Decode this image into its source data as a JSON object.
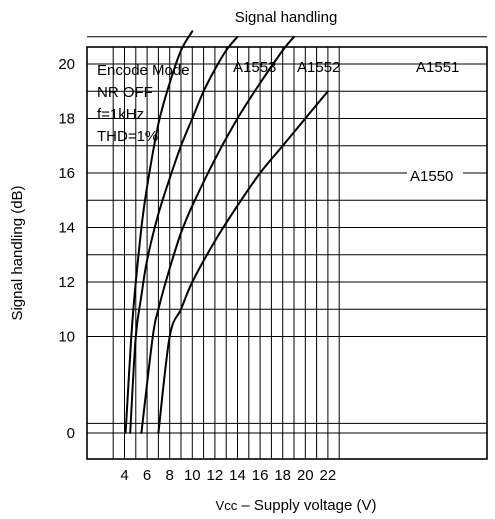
{
  "chart_data": {
    "type": "line",
    "title": "Signal handling",
    "xlabel": "Vcc – Supply voltage (V)",
    "xlabel_main": "Vcc",
    "xlabel_rest": " – Supply voltage (V)",
    "ylabel": "Signal handling (dB)",
    "xlim": [
      2,
      24
    ],
    "ylim": [
      -1,
      22
    ],
    "x_ticks": [
      4,
      6,
      8,
      10,
      12,
      14,
      16,
      18,
      20,
      22
    ],
    "y_ticks": [
      0,
      10,
      12,
      14,
      16,
      18,
      20
    ],
    "x_gridlines": [
      3,
      4,
      5,
      6,
      7,
      8,
      9,
      10,
      11,
      12,
      13,
      14,
      15,
      16,
      17,
      18,
      19,
      20,
      21,
      22,
      23
    ],
    "y_gridlines": [
      0,
      1,
      10,
      11,
      12,
      13,
      14,
      15,
      16,
      17,
      18,
      19,
      20,
      21
    ],
    "grid": true,
    "annotations": [
      "Encode Mode",
      "NR OFF",
      "f=1kHz",
      "THD=1%"
    ],
    "series": [
      {
        "name": "A1553",
        "x": [
          4.1,
          4.6,
          5.0,
          5.5,
          6.0,
          7.0,
          8.0,
          9.0,
          10.0
        ],
        "y": [
          0,
          10,
          12,
          14,
          15.5,
          17.8,
          19.3,
          20.5,
          21.2
        ]
      },
      {
        "name": "A1552",
        "x": [
          4.5,
          5.0,
          5.5,
          6.0,
          7.0,
          8.0,
          9.0,
          10.0,
          11.0,
          12.0,
          13.0,
          14.0
        ],
        "y": [
          0,
          10,
          11.5,
          12.8,
          14.5,
          15.8,
          17.0,
          18.0,
          19.0,
          19.8,
          20.5,
          21.0
        ]
      },
      {
        "name": "A1551",
        "x": [
          5.5,
          6.5,
          7.0,
          8.0,
          9.0,
          10.0,
          12.0,
          14.0,
          16.0,
          18.0,
          19.0
        ],
        "y": [
          0,
          10,
          11.0,
          12.5,
          13.8,
          14.8,
          16.5,
          18.0,
          19.3,
          20.5,
          21.0
        ]
      },
      {
        "name": "A1550",
        "x": [
          7.0,
          8.0,
          9.0,
          10.0,
          12.0,
          14.0,
          16.0,
          18.0,
          20.0,
          22.0
        ],
        "y": [
          0,
          10,
          11.0,
          12.0,
          13.5,
          14.8,
          16.0,
          17.0,
          18.0,
          19.0
        ]
      }
    ]
  }
}
